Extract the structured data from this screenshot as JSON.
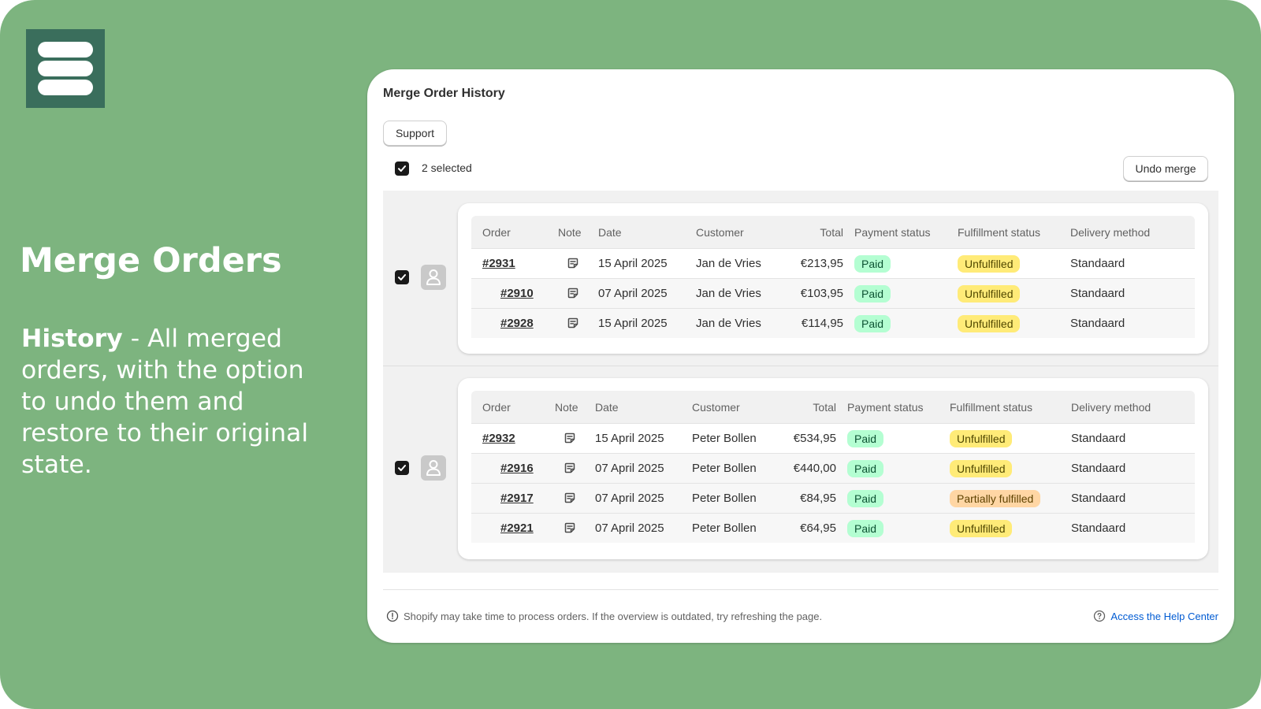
{
  "hero": {
    "title": "Merge Orders",
    "desc_bold": "History",
    "desc_rest": " - All merged orders, with the option to undo them and restore to their original state."
  },
  "card": {
    "title": "Merge Order History",
    "support_label": "Support",
    "selected_label": "2 selected",
    "undo_label": "Undo merge"
  },
  "columns": {
    "order": "Order",
    "note": "Note",
    "date": "Date",
    "customer": "Customer",
    "total": "Total",
    "payment": "Payment status",
    "fulfillment": "Fulfillment status",
    "delivery": "Delivery method"
  },
  "groups": [
    {
      "rows": [
        {
          "order": "#2931",
          "date": "15 April 2025",
          "customer": "Jan de Vries",
          "total": "€213,95",
          "payment": "Paid",
          "fulfillment": "Unfulfilled",
          "delivery": "Standaard"
        },
        {
          "order": "#2910",
          "date": "07 April 2025",
          "customer": "Jan de Vries",
          "total": "€103,95",
          "payment": "Paid",
          "fulfillment": "Unfulfilled",
          "delivery": "Standaard"
        },
        {
          "order": "#2928",
          "date": "15 April 2025",
          "customer": "Jan de Vries",
          "total": "€114,95",
          "payment": "Paid",
          "fulfillment": "Unfulfilled",
          "delivery": "Standaard"
        }
      ]
    },
    {
      "rows": [
        {
          "order": "#2932",
          "date": "15 April 2025",
          "customer": "Peter Bollen",
          "total": "€534,95",
          "payment": "Paid",
          "fulfillment": "Unfulfilled",
          "delivery": "Standaard"
        },
        {
          "order": "#2916",
          "date": "07 April 2025",
          "customer": "Peter Bollen",
          "total": "€440,00",
          "payment": "Paid",
          "fulfillment": "Unfulfilled",
          "delivery": "Standaard"
        },
        {
          "order": "#2917",
          "date": "07 April 2025",
          "customer": "Peter Bollen",
          "total": "€84,95",
          "payment": "Paid",
          "fulfillment": "Partially fulfilled",
          "delivery": "Standaard"
        },
        {
          "order": "#2921",
          "date": "07 April 2025",
          "customer": "Peter Bollen",
          "total": "€64,95",
          "payment": "Paid",
          "fulfillment": "Unfulfilled",
          "delivery": "Standaard"
        }
      ]
    }
  ],
  "footer": {
    "note": "Shopify may take time to process orders. If the overview is outdated, try refreshing the page.",
    "help_label": "Access the Help Center"
  },
  "icons": {
    "logo": "stacked-bars-logo-icon",
    "checkbox": "checkmark-icon",
    "avatar": "person-icon",
    "note": "note-icon",
    "info": "info-icon",
    "help": "question-circle-icon"
  },
  "colors": {
    "background": "#7db47f",
    "logo": "#3a6e5c",
    "paid": "#b4fed2",
    "unfulfilled": "#ffeb78",
    "partially_fulfilled": "#ffd6a4",
    "link": "#005bd3"
  }
}
